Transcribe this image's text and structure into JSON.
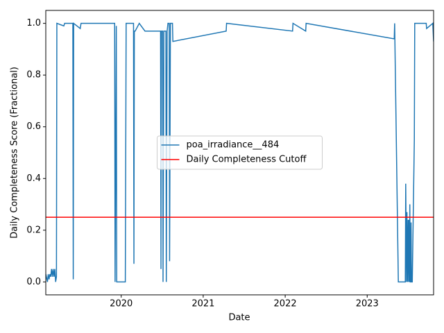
{
  "chart_data": {
    "type": "line",
    "xlabel": "Date",
    "ylabel": "Daily Completeness Score (Fractional)",
    "xlim": [
      2019.08,
      2023.81
    ],
    "xticks": [
      2020,
      2021,
      2022,
      2023
    ],
    "ylim": [
      -0.05,
      1.05
    ],
    "yticks": [
      {
        "value": 0,
        "label": "0.0"
      },
      {
        "value": 0.2,
        "label": "0.2"
      },
      {
        "value": 0.4,
        "label": "0.4"
      },
      {
        "value": 0.6,
        "label": "0.6"
      },
      {
        "value": 0.8,
        "label": "0.8"
      },
      {
        "value": 1,
        "label": "1.0"
      }
    ],
    "legend": "center",
    "series": [
      {
        "name": "poa_irradiance__484",
        "color": "#1f77b4",
        "x": [
          2019.08,
          2019.1,
          2019.11,
          2019.12,
          2019.13,
          2019.14,
          2019.15,
          2019.16,
          2019.17,
          2019.18,
          2019.19,
          2019.2,
          2019.21,
          2019.215,
          2019.3,
          2019.31,
          2019.41,
          2019.415,
          2019.42,
          2019.5,
          2019.51,
          2019.92,
          2019.925,
          2019.94,
          2019.945,
          2019.95,
          2020.05,
          2020.06,
          2020.15,
          2020.155,
          2020.16,
          2020.17,
          2020.22,
          2020.29,
          2020.48,
          2020.485,
          2020.49,
          2020.505,
          2020.51,
          2020.52,
          2020.545,
          2020.55,
          2020.56,
          2020.57,
          2020.585,
          2020.59,
          2020.6,
          2020.625,
          2020.63,
          2021.28,
          2021.285,
          2022.09,
          2022.095,
          2022.25,
          2022.255,
          2023.33,
          2023.335,
          2023.38,
          2023.465,
          2023.47,
          2023.48,
          2023.485,
          2023.49,
          2023.5,
          2023.505,
          2023.51,
          2023.515,
          2023.52,
          2023.525,
          2023.53,
          2023.535,
          2023.54,
          2023.545,
          2023.55,
          2023.575,
          2023.58,
          2023.72,
          2023.725,
          2023.8,
          2023.81
        ],
        "values": [
          0.03,
          0.0,
          0.03,
          0.01,
          0.03,
          0.02,
          0.05,
          0.02,
          0.05,
          0.02,
          0.05,
          0.0,
          0.02,
          1.0,
          0.99,
          1.0,
          1.0,
          0.01,
          1.0,
          0.98,
          1.0,
          1.0,
          0.0,
          0.99,
          0.0,
          0.0,
          0.0,
          1.0,
          1.0,
          0.07,
          0.97,
          0.97,
          1.0,
          0.97,
          0.97,
          0.05,
          0.97,
          0.97,
          0.0,
          0.97,
          0.97,
          0.0,
          0.97,
          1.0,
          1.0,
          0.08,
          1.0,
          1.0,
          0.93,
          0.97,
          1.0,
          0.97,
          1.0,
          0.97,
          1.0,
          0.94,
          1.0,
          0.0,
          0.0,
          0.38,
          0.0,
          0.27,
          0.0,
          0.24,
          0.0,
          0.24,
          0.0,
          0.3,
          0.0,
          0.0,
          0.23,
          0.0,
          0.0,
          0.0,
          0.55,
          1.0,
          1.0,
          0.98,
          1.0,
          0.93
        ]
      },
      {
        "name": "Daily Completeness Cutoff",
        "color": "red",
        "hline": 0.25
      }
    ]
  }
}
